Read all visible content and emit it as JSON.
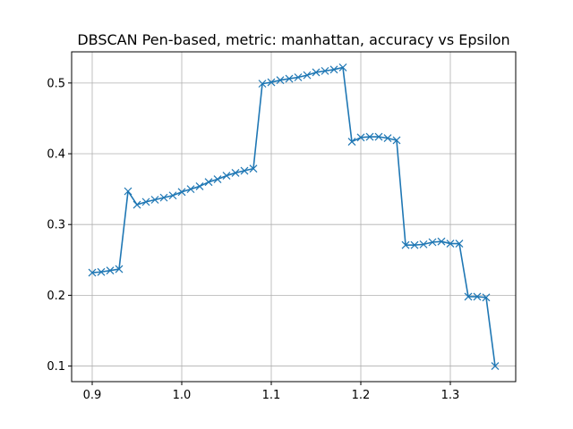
{
  "chart_data": {
    "type": "line",
    "title": "DBSCAN Pen-based, metric: manhattan, accuracy vs Epsilon",
    "xlabel": "",
    "ylabel": "",
    "xlim": [
      0.877,
      1.373
    ],
    "ylim": [
      0.078,
      0.544
    ],
    "xticks": [
      0.9,
      1.0,
      1.1,
      1.2,
      1.3
    ],
    "xtick_labels": [
      "0.9",
      "1.0",
      "1.1",
      "1.2",
      "1.3"
    ],
    "yticks": [
      0.1,
      0.2,
      0.3,
      0.4,
      0.5
    ],
    "ytick_labels": [
      "0.1",
      "0.2",
      "0.3",
      "0.4",
      "0.5"
    ],
    "grid": true,
    "series": [
      {
        "color": "#1f77b4",
        "marker": "x",
        "x": [
          0.9,
          0.91,
          0.92,
          0.93,
          0.94,
          0.95,
          0.96,
          0.97,
          0.98,
          0.99,
          1.0,
          1.01,
          1.02,
          1.03,
          1.04,
          1.05,
          1.06,
          1.07,
          1.08,
          1.09,
          1.1,
          1.11,
          1.12,
          1.13,
          1.14,
          1.15,
          1.16,
          1.17,
          1.18,
          1.19,
          1.2,
          1.21,
          1.22,
          1.23,
          1.24,
          1.25,
          1.26,
          1.27,
          1.28,
          1.29,
          1.3,
          1.31,
          1.32,
          1.33,
          1.34,
          1.35
        ],
        "y": [
          0.232,
          0.233,
          0.235,
          0.237,
          0.347,
          0.328,
          0.332,
          0.335,
          0.338,
          0.341,
          0.346,
          0.35,
          0.354,
          0.36,
          0.364,
          0.369,
          0.373,
          0.376,
          0.379,
          0.499,
          0.501,
          0.504,
          0.506,
          0.508,
          0.511,
          0.515,
          0.517,
          0.519,
          0.522,
          0.417,
          0.423,
          0.424,
          0.424,
          0.422,
          0.419,
          0.271,
          0.271,
          0.272,
          0.275,
          0.276,
          0.273,
          0.273,
          0.198,
          0.198,
          0.197,
          0.1
        ]
      }
    ]
  }
}
